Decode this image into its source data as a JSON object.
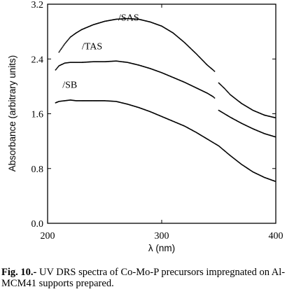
{
  "chart_data": {
    "type": "scatter",
    "xlabel": "λ (nm)",
    "ylabel": "Absorbance (arbitrary units)",
    "xlim": [
      200,
      400
    ],
    "ylim": [
      0.0,
      3.2
    ],
    "xticks": [
      200,
      300,
      400
    ],
    "xtick_labels": [
      "200",
      "300",
      "400"
    ],
    "yticks": [
      0.0,
      0.8,
      1.6,
      2.4,
      3.2
    ],
    "ytick_labels": [
      "0.0",
      "0.8",
      "1.6",
      "2.4",
      "3.2"
    ],
    "grid": false,
    "legend": "none",
    "series": [
      {
        "name": "/SAS",
        "x": [
          207,
          210,
          215,
          220,
          225,
          230,
          240,
          250,
          260,
          270,
          280,
          290,
          300,
          310,
          320,
          330,
          340,
          345,
          347,
          350,
          355,
          360,
          370,
          380,
          390,
          400
        ],
        "y": [
          2.42,
          2.5,
          2.62,
          2.72,
          2.78,
          2.83,
          2.9,
          2.95,
          2.98,
          2.99,
          2.98,
          2.94,
          2.88,
          2.78,
          2.64,
          2.48,
          2.31,
          2.24,
          2.21,
          2.05,
          1.97,
          1.88,
          1.75,
          1.65,
          1.58,
          1.54
        ]
      },
      {
        "name": "/TAS",
        "x": [
          207,
          210,
          215,
          220,
          225,
          230,
          240,
          250,
          260,
          270,
          280,
          290,
          300,
          310,
          320,
          330,
          340,
          345,
          347,
          350,
          355,
          360,
          370,
          380,
          390,
          400
        ],
        "y": [
          2.24,
          2.3,
          2.34,
          2.35,
          2.35,
          2.35,
          2.36,
          2.36,
          2.37,
          2.35,
          2.31,
          2.26,
          2.2,
          2.13,
          2.06,
          1.98,
          1.9,
          1.85,
          1.82,
          1.65,
          1.6,
          1.55,
          1.46,
          1.38,
          1.31,
          1.26
        ]
      },
      {
        "name": "/SB",
        "x": [
          207,
          210,
          215,
          220,
          225,
          230,
          240,
          250,
          260,
          270,
          280,
          290,
          300,
          310,
          320,
          330,
          340,
          345,
          347,
          350,
          355,
          360,
          370,
          380,
          390,
          400
        ],
        "y": [
          1.76,
          1.78,
          1.79,
          1.8,
          1.79,
          1.79,
          1.79,
          1.79,
          1.78,
          1.74,
          1.69,
          1.63,
          1.56,
          1.49,
          1.42,
          1.33,
          1.23,
          1.18,
          1.16,
          1.13,
          1.06,
          0.99,
          0.86,
          0.75,
          0.67,
          0.61
        ]
      }
    ],
    "series_labels": [
      {
        "text": "/SAS",
        "x": 262,
        "y": 2.96
      },
      {
        "text": "/TAS",
        "x": 230,
        "y": 2.54
      },
      {
        "text": "/SB",
        "x": 213,
        "y": 1.98
      }
    ]
  },
  "caption": {
    "label": "Fig. 10.-",
    "text": " UV DRS spectra of Co-Mo-P precursors impregnated on Al-MCM41 supports prepared."
  }
}
